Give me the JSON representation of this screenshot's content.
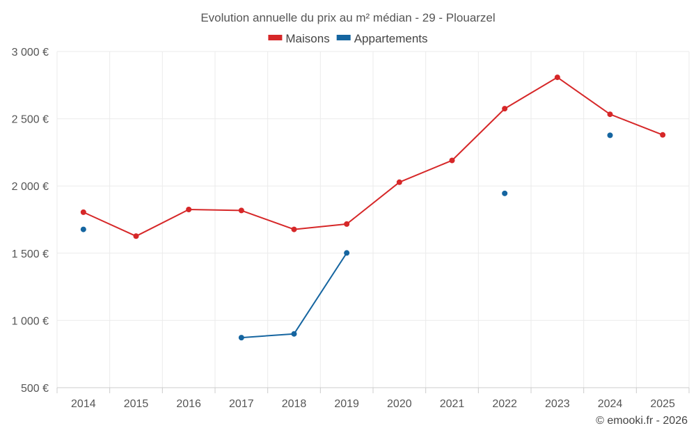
{
  "chart_data": {
    "type": "line",
    "title": "Evolution annuelle du prix au m² médian - 29 - Plouarzel",
    "categories": [
      "2014",
      "2015",
      "2016",
      "2017",
      "2018",
      "2019",
      "2020",
      "2021",
      "2022",
      "2023",
      "2024",
      "2025"
    ],
    "ylim": [
      500,
      3000
    ],
    "yticks": [
      500,
      1000,
      1500,
      2000,
      2500,
      3000
    ],
    "ytick_labels": [
      "500 €",
      "1 000 €",
      "1 500 €",
      "2 000 €",
      "2 500 €",
      "3 000 €"
    ],
    "grid": true,
    "legend_position": "top-center",
    "series": [
      {
        "name": "Maisons",
        "color": "#d62728",
        "values": [
          1805,
          1627,
          1825,
          1818,
          1677,
          1717,
          2028,
          2190,
          2575,
          2808,
          2533,
          2380
        ]
      },
      {
        "name": "Appartements",
        "color": "#1565a0",
        "values": [
          1677,
          null,
          null,
          872,
          900,
          1502,
          null,
          null,
          1945,
          null,
          2377,
          null
        ]
      }
    ]
  },
  "credit": "© emooki.fr - 2026"
}
